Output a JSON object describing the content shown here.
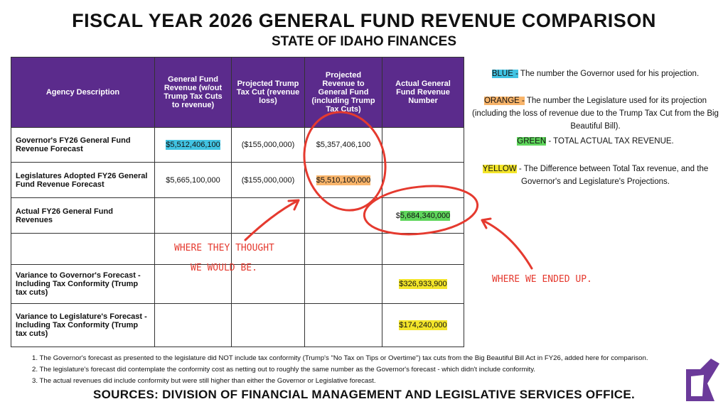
{
  "header": {
    "title": "FISCAL YEAR 2026 GENERAL FUND REVENUE COMPARISON",
    "subtitle": "STATE OF IDAHO FINANCES"
  },
  "table": {
    "columns": [
      "Agency Description",
      "General Fund Revenue (w/out Trump Tax Cuts to revenue)",
      "Projected Trump Tax Cut (revenue loss)",
      "Projected Revenue to General Fund (including Trump Tax Cuts)",
      "Actual General Fund Revenue Number"
    ],
    "governor": {
      "description": "Governor's FY26 General Fund Revenue Forecast",
      "without_cuts": "$5,512,406,100",
      "tax_cut": "($155,000,000)",
      "projected": "$5,357,406,100"
    },
    "legislature": {
      "description": "Legislatures Adopted FY26 General Fund Revenue Forecast",
      "without_cuts": "$5,665,100,000",
      "tax_cut": "($155,000,000)",
      "projected": "$5,510,100,000"
    },
    "actual": {
      "description": "Actual FY26 General Fund Revenues",
      "currency": "$",
      "amount": "5,684,340,000"
    },
    "variance_governor": {
      "description": "Variance to Governor's Forecast - Including Tax Conformity (Trump tax cuts)",
      "actual": "$326,933,900"
    },
    "variance_legislature": {
      "description": "Variance to Legislature's Forecast - Including Tax Conformity (Trump tax cuts)",
      "actual": "$174,240,000"
    }
  },
  "legend": [
    {
      "key": "BLUE -",
      "text": "The number the Governor used for his projection."
    },
    {
      "key": "ORANGE -",
      "text": "The number the Legislature used for its projection (including the loss of revenue due to the Trump Tax Cut from the Big Beautiful Bill)."
    },
    {
      "key": "GREEN",
      "text": "- TOTAL ACTUAL TAX REVENUE."
    },
    {
      "key": "YELLOW",
      "text": "- The Difference between Total Tax revenue, and the Governor's and Legislature's Projections."
    }
  ],
  "annotations": {
    "thought": [
      "WHERE THEY THOUGHT",
      "WE WOULD BE."
    ],
    "ended": "WHERE WE ENDED UP."
  },
  "footnotes": [
    "1. The Governor's forecast as presented to the legislature did NOT include tax conformity (Trump's \"No Tax on Tips or Overtime\") tax cuts from the Big Beautiful Bill Act in FY26, added here for comparison.",
    "2. The legislature's forecast did contemplate the conformity cost as netting out to roughly the same number as the Governor's forecast - which didn't include conformity.",
    "3. The actual revenues did include conformity but were still higher than either the Governor or Legislative forecast."
  ],
  "sources": "SOURCES: DIVISION OF FINANCIAL MANAGEMENT AND LEGISLATIVE SERVICES OFFICE."
}
